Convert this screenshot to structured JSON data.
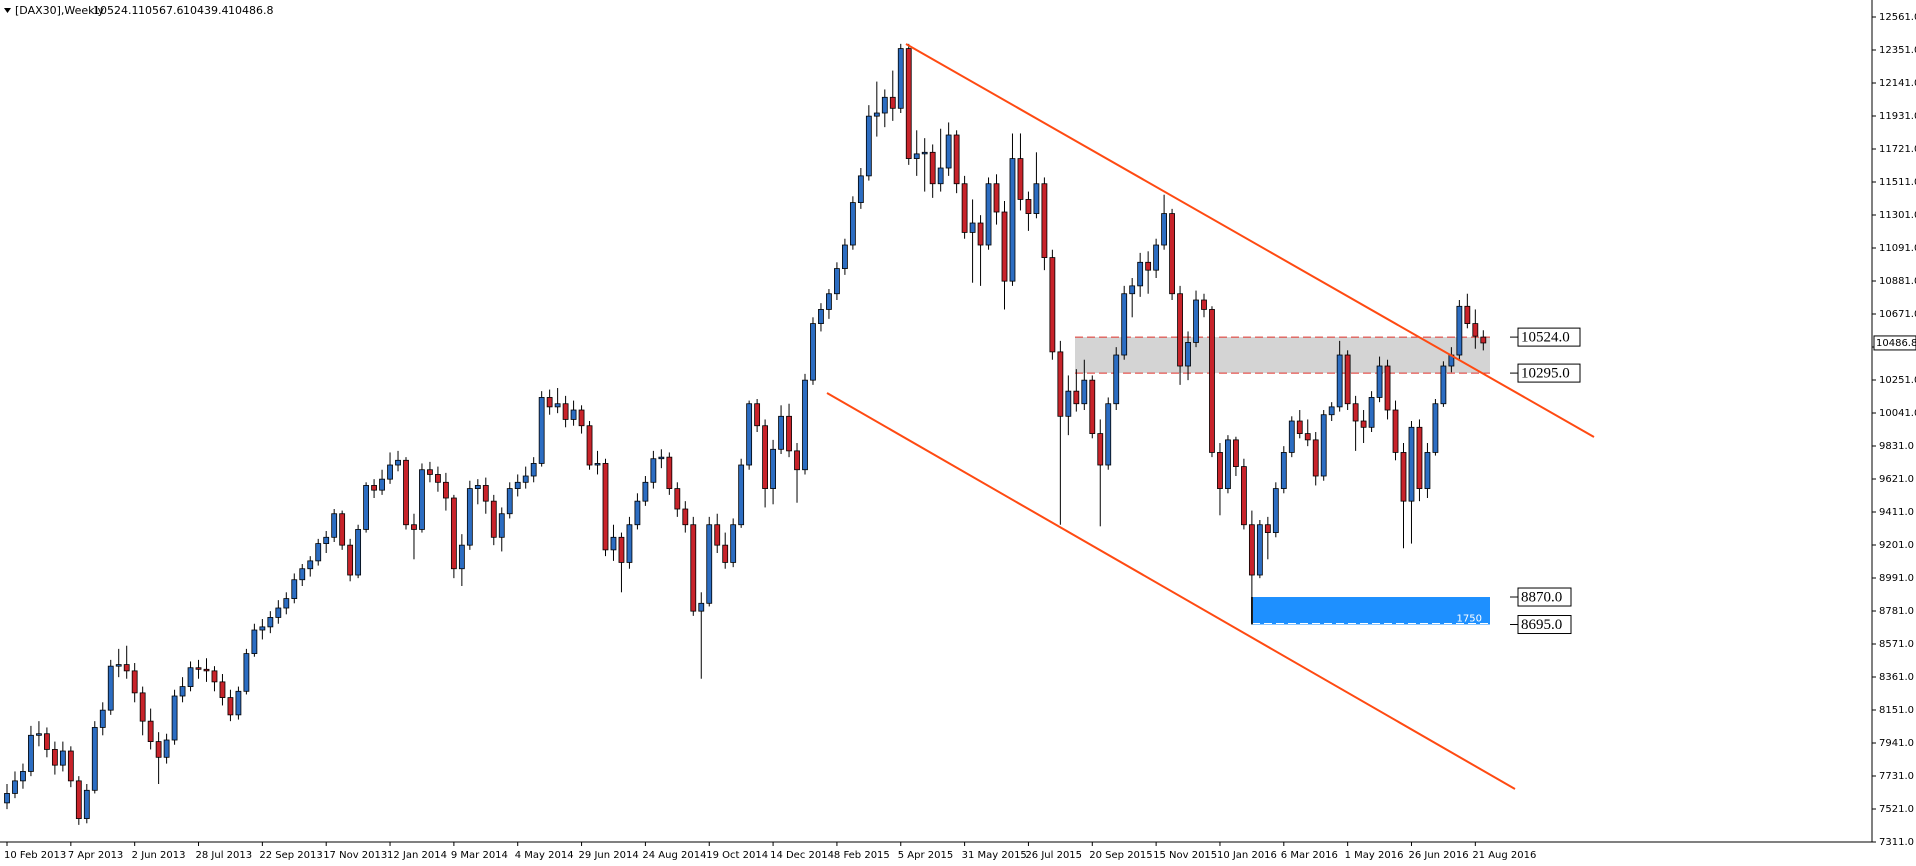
{
  "chart_data": {
    "type": "candlestick",
    "symbol": "[DAX30],Weekly",
    "up_color": "#2c6dc2",
    "down_color": "#c8232a",
    "channel_color": "#ff4a12",
    "ylim": [
      7311,
      12561
    ],
    "yticks": [
      {
        "value": 7311,
        "label": "7311.0"
      },
      {
        "value": 7521,
        "label": "7521.0"
      },
      {
        "value": 7731,
        "label": "7731.0"
      },
      {
        "value": 7941,
        "label": "7941.0"
      },
      {
        "value": 8151,
        "label": "8151.0"
      },
      {
        "value": 8361,
        "label": "8361.0"
      },
      {
        "value": 8571,
        "label": "8571.0"
      },
      {
        "value": 8781,
        "label": "8781.0"
      },
      {
        "value": 8991,
        "label": "8991.0"
      },
      {
        "value": 9201,
        "label": "9201.0"
      },
      {
        "value": 9411,
        "label": "9411.0"
      },
      {
        "value": 9621,
        "label": "9621.0"
      },
      {
        "value": 9831,
        "label": "9831.0"
      },
      {
        "value": 10041,
        "label": "10041.0"
      },
      {
        "value": 10251,
        "label": "10251.0"
      },
      {
        "value": 10461,
        "label": "10461.0"
      },
      {
        "value": 10671,
        "label": "10671.0"
      },
      {
        "value": 10881,
        "label": "10881.0"
      },
      {
        "value": 11091,
        "label": "11091.0"
      },
      {
        "value": 11301,
        "label": "11301.0"
      },
      {
        "value": 11511,
        "label": "11511.0"
      },
      {
        "value": 11721,
        "label": "11721.0"
      },
      {
        "value": 11931,
        "label": "11931.0"
      },
      {
        "value": 12141,
        "label": "12141.0"
      },
      {
        "value": 12351,
        "label": "12351.0"
      },
      {
        "value": 12561,
        "label": "12561.0"
      }
    ],
    "zones": [
      {
        "top": {
          "value": 10524,
          "label": "10524.0"
        },
        "bottom": {
          "value": 10295,
          "label": "10295.0"
        },
        "color": "#d4d4d4",
        "line_color": "#e0302a"
      },
      {
        "top": {
          "value": 8870,
          "label": "8870.0"
        },
        "bottom": {
          "value": 8695,
          "label": "8695.0"
        },
        "color": "#1e90ff",
        "line_color": "#ffffff",
        "text": 1750
      }
    ],
    "categories": [
      "10 Feb 2013",
      null,
      null,
      null,
      null,
      null,
      null,
      null,
      "7 Apr 2013",
      null,
      null,
      null,
      null,
      null,
      null,
      null,
      "2 Jun 2013",
      null,
      null,
      null,
      null,
      null,
      null,
      null,
      "28 Jul 2013",
      null,
      null,
      null,
      null,
      null,
      null,
      null,
      "22 Sep 2013",
      null,
      null,
      null,
      null,
      null,
      null,
      null,
      "17 Nov 2013",
      null,
      null,
      null,
      null,
      null,
      null,
      null,
      "12 Jan 2014",
      null,
      null,
      null,
      null,
      null,
      null,
      null,
      "9 Mar 2014",
      null,
      null,
      null,
      null,
      null,
      null,
      null,
      "4 May 2014",
      null,
      null,
      null,
      null,
      null,
      null,
      null,
      "29 Jun 2014",
      null,
      null,
      null,
      null,
      null,
      null,
      null,
      "24 Aug 2014",
      null,
      null,
      null,
      null,
      null,
      null,
      null,
      "19 Oct 2014",
      null,
      null,
      null,
      null,
      null,
      null,
      null,
      "14 Dec 2014",
      null,
      null,
      null,
      null,
      null,
      null,
      null,
      "8 Feb 2015",
      null,
      null,
      null,
      null,
      null,
      null,
      null,
      "5 Apr 2015",
      null,
      null,
      null,
      null,
      null,
      null,
      null,
      "31 May 2015",
      null,
      null,
      null,
      null,
      null,
      null,
      null,
      "26 Jul 2015",
      null,
      null,
      null,
      null,
      null,
      null,
      null,
      "20 Sep 2015",
      null,
      null,
      null,
      null,
      null,
      null,
      null,
      "15 Nov 2015",
      null,
      null,
      null,
      null,
      null,
      null,
      null,
      "10 Jan 2016",
      null,
      null,
      null,
      null,
      null,
      null,
      null,
      "6 Mar 2016",
      null,
      null,
      null,
      null,
      null,
      null,
      null,
      "1 May 2016",
      null,
      null,
      null,
      null,
      null,
      null,
      null,
      "26 Jun 2016",
      null,
      null,
      null,
      null,
      null,
      null,
      null,
      "21 Aug 2016",
      null
    ],
    "ohlc": [
      [
        7560,
        7680,
        7520,
        7620
      ],
      [
        7620,
        7760,
        7590,
        7700
      ],
      [
        7700,
        7810,
        7650,
        7760
      ],
      [
        7760,
        8050,
        7730,
        7990
      ],
      [
        7990,
        8080,
        7920,
        8000
      ],
      [
        8000,
        8040,
        7850,
        7900
      ],
      [
        7900,
        7950,
        7740,
        7800
      ],
      [
        7800,
        7950,
        7760,
        7890
      ],
      [
        7890,
        7920,
        7660,
        7700
      ],
      [
        7700,
        7730,
        7420,
        7460
      ],
      [
        7460,
        7680,
        7430,
        7640
      ],
      [
        7640,
        8080,
        7620,
        8040
      ],
      [
        8040,
        8200,
        7990,
        8150
      ],
      [
        8150,
        8470,
        8120,
        8430
      ],
      [
        8430,
        8540,
        8360,
        8440
      ],
      [
        8440,
        8560,
        8350,
        8400
      ],
      [
        8400,
        8450,
        8200,
        8260
      ],
      [
        8260,
        8300,
        7990,
        8080
      ],
      [
        8080,
        8160,
        7900,
        7950
      ],
      [
        7950,
        8010,
        7680,
        7850
      ],
      [
        7850,
        8000,
        7810,
        7960
      ],
      [
        7960,
        8280,
        7930,
        8240
      ],
      [
        8240,
        8360,
        8200,
        8300
      ],
      [
        8300,
        8460,
        8270,
        8420
      ],
      [
        8420,
        8470,
        8350,
        8410
      ],
      [
        8410,
        8480,
        8330,
        8400
      ],
      [
        8400,
        8430,
        8270,
        8330
      ],
      [
        8330,
        8380,
        8180,
        8230
      ],
      [
        8230,
        8280,
        8080,
        8120
      ],
      [
        8120,
        8300,
        8090,
        8270
      ],
      [
        8270,
        8540,
        8250,
        8510
      ],
      [
        8510,
        8700,
        8490,
        8660
      ],
      [
        8660,
        8730,
        8600,
        8680
      ],
      [
        8680,
        8780,
        8640,
        8740
      ],
      [
        8740,
        8850,
        8700,
        8800
      ],
      [
        8800,
        8900,
        8760,
        8860
      ],
      [
        8860,
        9020,
        8830,
        8980
      ],
      [
        8980,
        9080,
        8940,
        9050
      ],
      [
        9050,
        9130,
        9000,
        9100
      ],
      [
        9100,
        9240,
        9070,
        9210
      ],
      [
        9210,
        9290,
        9150,
        9250
      ],
      [
        9250,
        9430,
        9220,
        9400
      ],
      [
        9400,
        9420,
        9170,
        9200
      ],
      [
        9200,
        9240,
        8970,
        9010
      ],
      [
        9010,
        9330,
        8990,
        9300
      ],
      [
        9300,
        9600,
        9280,
        9580
      ],
      [
        9580,
        9620,
        9500,
        9550
      ],
      [
        9550,
        9680,
        9520,
        9620
      ],
      [
        9620,
        9790,
        9590,
        9710
      ],
      [
        9710,
        9800,
        9670,
        9740
      ],
      [
        9740,
        9760,
        9300,
        9330
      ],
      [
        9330,
        9400,
        9110,
        9300
      ],
      [
        9300,
        9720,
        9280,
        9680
      ],
      [
        9680,
        9730,
        9600,
        9650
      ],
      [
        9650,
        9700,
        9540,
        9600
      ],
      [
        9600,
        9660,
        9420,
        9500
      ],
      [
        9500,
        9520,
        8990,
        9050
      ],
      [
        9050,
        9270,
        8940,
        9200
      ],
      [
        9200,
        9610,
        9170,
        9560
      ],
      [
        9560,
        9620,
        9460,
        9580
      ],
      [
        9580,
        9630,
        9400,
        9480
      ],
      [
        9480,
        9520,
        9200,
        9250
      ],
      [
        9250,
        9440,
        9160,
        9400
      ],
      [
        9400,
        9600,
        9370,
        9560
      ],
      [
        9560,
        9650,
        9510,
        9600
      ],
      [
        9600,
        9700,
        9560,
        9640
      ],
      [
        9640,
        9760,
        9600,
        9720
      ],
      [
        9720,
        10180,
        9700,
        10140
      ],
      [
        10140,
        10190,
        10030,
        10080
      ],
      [
        10080,
        10200,
        10040,
        10100
      ],
      [
        10100,
        10150,
        9950,
        10000
      ],
      [
        10000,
        10120,
        9960,
        10060
      ],
      [
        10060,
        10090,
        9910,
        9960
      ],
      [
        9960,
        9990,
        9680,
        9710
      ],
      [
        9710,
        9800,
        9650,
        9720
      ],
      [
        9720,
        9750,
        9130,
        9170
      ],
      [
        9170,
        9330,
        9100,
        9250
      ],
      [
        9250,
        9280,
        8900,
        9090
      ],
      [
        9090,
        9380,
        9050,
        9330
      ],
      [
        9330,
        9530,
        9300,
        9480
      ],
      [
        9480,
        9640,
        9450,
        9600
      ],
      [
        9600,
        9800,
        9560,
        9750
      ],
      [
        9750,
        9810,
        9690,
        9760
      ],
      [
        9760,
        9790,
        9520,
        9560
      ],
      [
        9560,
        9600,
        9380,
        9430
      ],
      [
        9430,
        9480,
        9280,
        9330
      ],
      [
        9330,
        9380,
        8750,
        8780
      ],
      [
        8780,
        8900,
        8350,
        8830
      ],
      [
        8830,
        9380,
        8810,
        9330
      ],
      [
        9330,
        9400,
        9150,
        9200
      ],
      [
        9200,
        9280,
        9050,
        9090
      ],
      [
        9090,
        9370,
        9060,
        9330
      ],
      [
        9330,
        9750,
        9310,
        9710
      ],
      [
        9710,
        10120,
        9680,
        10100
      ],
      [
        10100,
        10130,
        9920,
        9960
      ],
      [
        9960,
        10000,
        9440,
        9560
      ],
      [
        9560,
        9870,
        9460,
        9810
      ],
      [
        9810,
        10090,
        9780,
        10020
      ],
      [
        10020,
        10100,
        9760,
        9800
      ],
      [
        9800,
        9850,
        9470,
        9680
      ],
      [
        9680,
        10290,
        9650,
        10250
      ],
      [
        10250,
        10650,
        10220,
        10610
      ],
      [
        10610,
        10740,
        10560,
        10700
      ],
      [
        10700,
        10830,
        10640,
        10800
      ],
      [
        10800,
        11000,
        10760,
        10960
      ],
      [
        10960,
        11150,
        10920,
        11110
      ],
      [
        11110,
        11420,
        11080,
        11380
      ],
      [
        11380,
        11600,
        11340,
        11550
      ],
      [
        11550,
        12000,
        11520,
        11930
      ],
      [
        11930,
        12150,
        11800,
        11950
      ],
      [
        11950,
        12100,
        11860,
        12050
      ],
      [
        12050,
        12220,
        11900,
        11980
      ],
      [
        11980,
        12390,
        11950,
        12360
      ],
      [
        12360,
        12390,
        11620,
        11660
      ],
      [
        11660,
        11840,
        11550,
        11690
      ],
      [
        11690,
        11790,
        11450,
        11700
      ],
      [
        11700,
        11750,
        11410,
        11500
      ],
      [
        11500,
        11850,
        11450,
        11600
      ],
      [
        11600,
        11890,
        11550,
        11810
      ],
      [
        11810,
        11840,
        11440,
        11500
      ],
      [
        11500,
        11550,
        11150,
        11190
      ],
      [
        11190,
        11400,
        10870,
        11250
      ],
      [
        11250,
        11300,
        10850,
        11110
      ],
      [
        11110,
        11540,
        11080,
        11500
      ],
      [
        11500,
        11560,
        11240,
        11320
      ],
      [
        11320,
        11390,
        10700,
        10880
      ],
      [
        10880,
        11820,
        10850,
        11660
      ],
      [
        11660,
        11820,
        11330,
        11400
      ],
      [
        11400,
        11450,
        11200,
        11310
      ],
      [
        11310,
        11700,
        11280,
        11500
      ],
      [
        11500,
        11540,
        10950,
        11030
      ],
      [
        11030,
        11080,
        10380,
        10430
      ],
      [
        10430,
        10500,
        9330,
        10020
      ],
      [
        10020,
        10280,
        9900,
        10180
      ],
      [
        10180,
        10320,
        10050,
        10100
      ],
      [
        10100,
        10380,
        10060,
        10250
      ],
      [
        10250,
        10280,
        9880,
        9910
      ],
      [
        9910,
        10000,
        9320,
        9710
      ],
      [
        9710,
        10140,
        9680,
        10100
      ],
      [
        10100,
        10460,
        10060,
        10410
      ],
      [
        10410,
        10850,
        10380,
        10800
      ],
      [
        10800,
        10900,
        10650,
        10850
      ],
      [
        10850,
        11060,
        10780,
        11000
      ],
      [
        11000,
        11070,
        10800,
        10950
      ],
      [
        10950,
        11150,
        10900,
        11110
      ],
      [
        11110,
        11430,
        11080,
        11310
      ],
      [
        11310,
        11340,
        10760,
        10800
      ],
      [
        10800,
        10850,
        10220,
        10340
      ],
      [
        10340,
        10560,
        10250,
        10490
      ],
      [
        10490,
        10820,
        10460,
        10760
      ],
      [
        10760,
        10800,
        10650,
        10700
      ],
      [
        10700,
        10720,
        9760,
        9790
      ],
      [
        9790,
        9850,
        9390,
        9560
      ],
      [
        9560,
        9900,
        9530,
        9870
      ],
      [
        9870,
        9890,
        9640,
        9700
      ],
      [
        9700,
        9750,
        9300,
        9330
      ],
      [
        9330,
        9420,
        8700,
        9010
      ],
      [
        9010,
        9360,
        8990,
        9330
      ],
      [
        9330,
        9380,
        9110,
        9280
      ],
      [
        9280,
        9600,
        9250,
        9560
      ],
      [
        9560,
        9830,
        9530,
        9790
      ],
      [
        9790,
        10020,
        9760,
        9990
      ],
      [
        9990,
        10060,
        9880,
        9910
      ],
      [
        9910,
        10000,
        9830,
        9870
      ],
      [
        9870,
        9920,
        9580,
        9640
      ],
      [
        9640,
        10060,
        9610,
        10030
      ],
      [
        10030,
        10110,
        9990,
        10080
      ],
      [
        10080,
        10500,
        10050,
        10410
      ],
      [
        10410,
        10440,
        10060,
        10100
      ],
      [
        10100,
        10150,
        9800,
        9990
      ],
      [
        9990,
        10060,
        9850,
        9950
      ],
      [
        9950,
        10180,
        9920,
        10140
      ],
      [
        10140,
        10400,
        10110,
        10340
      ],
      [
        10340,
        10380,
        10000,
        10060
      ],
      [
        10060,
        10120,
        9740,
        9790
      ],
      [
        9790,
        9850,
        9180,
        9480
      ],
      [
        9480,
        9990,
        9210,
        9950
      ],
      [
        9950,
        10000,
        9480,
        9560
      ],
      [
        9560,
        9850,
        9500,
        9790
      ],
      [
        9790,
        10130,
        9770,
        10100
      ],
      [
        10100,
        10370,
        10080,
        10340
      ],
      [
        10340,
        10460,
        10300,
        10410
      ],
      [
        10410,
        10760,
        10380,
        10720
      ],
      [
        10720,
        10800,
        10580,
        10610
      ],
      [
        10610,
        10700,
        10450,
        10530
      ],
      [
        10524.1,
        10567.6,
        10439.4,
        10486.8
      ]
    ]
  }
}
